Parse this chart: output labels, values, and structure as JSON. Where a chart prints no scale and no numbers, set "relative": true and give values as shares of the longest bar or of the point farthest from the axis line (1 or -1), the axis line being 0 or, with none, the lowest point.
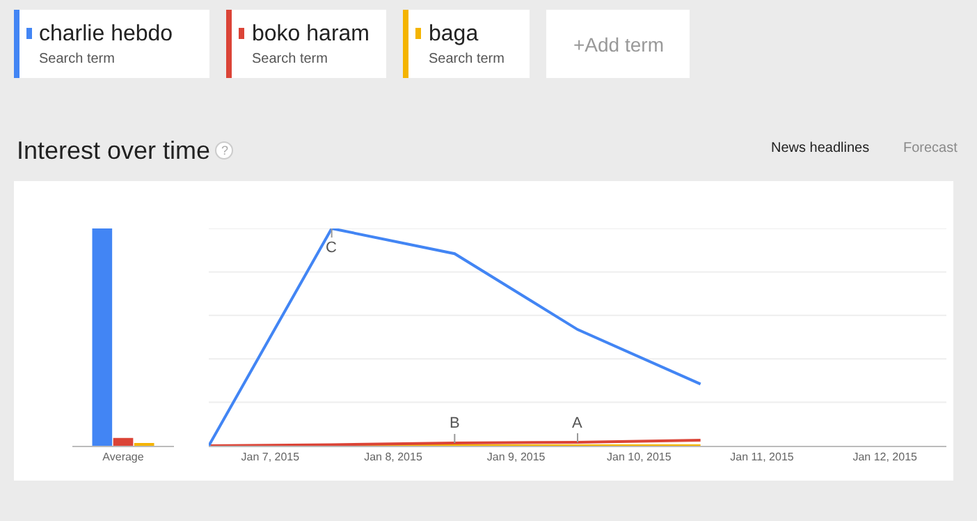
{
  "chart_data": [
    {
      "type": "bar",
      "title": "Interest over time",
      "relative": true,
      "categories": [
        "Average"
      ],
      "series": [
        {
          "color": "#4285f4",
          "values": [
            1
          ]
        },
        {
          "color": "#db4437",
          "values": [
            0.036
          ]
        },
        {
          "color": "#f4b400",
          "values": [
            0.012
          ]
        }
      ],
      "annotations": [
        "Search term",
        "Search term",
        "Search term",
        "+Add term",
        "?",
        "News headlines",
        "Forecast"
      ]
    },
    {
      "type": "line",
      "relative": true,
      "grid": "y",
      "legend": "top",
      "x": [
        "2015-01-06T12:00",
        "2015-01-07T12:00",
        "2015-01-08T12:00",
        "2015-01-09T12:00",
        "2015-01-10T12:00"
      ],
      "xlim": [
        "2015-01-06T12:00",
        "2015-01-12T12:00"
      ],
      "xticks": [
        {
          "value": "2015-01-07",
          "label": "Jan 7, 2015"
        },
        {
          "value": "2015-01-08",
          "label": "Jan 8, 2015"
        },
        {
          "value": "2015-01-09",
          "label": "Jan 9, 2015"
        },
        {
          "value": "2015-01-10",
          "label": "Jan 10, 2015"
        },
        {
          "value": "2015-01-11",
          "label": "Jan 11, 2015"
        },
        {
          "value": "2015-01-12",
          "label": "Jan 12, 2015"
        }
      ],
      "series": [
        {
          "name": "charlie hebdo",
          "color": "#4285f4",
          "values": [
            0,
            1,
            0.884,
            0.535,
            0.284
          ]
        },
        {
          "name": "boko haram",
          "color": "#db4437",
          "values": [
            0,
            0.005,
            0.013,
            0.016,
            0.026
          ]
        },
        {
          "name": "baga",
          "color": "#f4b400",
          "values": [
            0,
            0,
            0,
            0,
            0
          ]
        }
      ],
      "annotations": [
        {
          "text": "C",
          "x": "2015-01-07T12:00",
          "y": 1
        },
        {
          "text": "B",
          "x": "2015-01-08T12:00",
          "y": 0.013
        },
        {
          "text": "A",
          "x": "2015-01-09T12:00",
          "y": 0.016
        }
      ]
    }
  ]
}
